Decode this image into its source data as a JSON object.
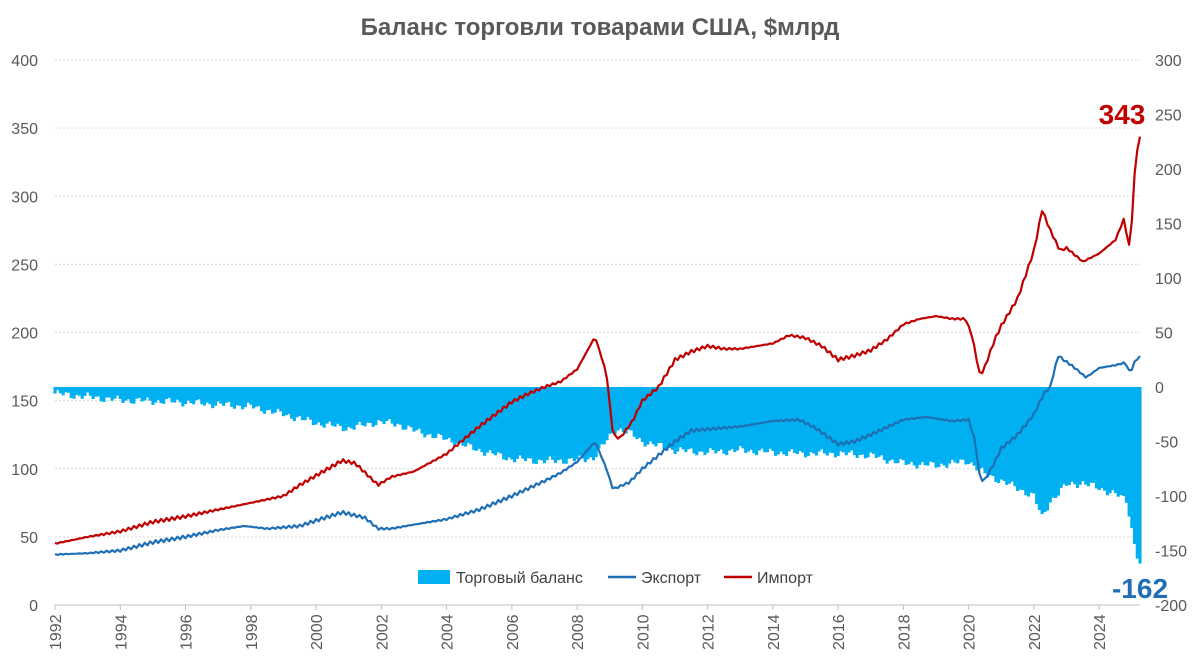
{
  "chart_data": {
    "type": "bar+line",
    "title": "Баланс торговли товарами США, $млрд",
    "left_axis": {
      "min": 0,
      "max": 400,
      "ticks": [
        "0",
        "50",
        "100",
        "150",
        "200",
        "250",
        "300",
        "350",
        "400"
      ]
    },
    "right_axis": {
      "min": -200,
      "max": 300,
      "ticks": [
        "-200",
        "-150",
        "-100",
        "-50",
        "0",
        "50",
        "100",
        "150",
        "200",
        "250",
        "300"
      ]
    },
    "x_range": [
      1992,
      2025.25
    ],
    "x_ticks": [
      "1992",
      "1994",
      "1996",
      "1998",
      "2000",
      "2002",
      "2004",
      "2006",
      "2008",
      "2010",
      "2012",
      "2014",
      "2016",
      "2018",
      "2020",
      "2022",
      "2024"
    ],
    "legend": [
      "Торговый баланс",
      "Экспорт",
      "Импорт"
    ],
    "colors": {
      "balance": "#00b0f0",
      "export": "#1f6fb4",
      "import": "#c00000",
      "grid": "#d9d9d9",
      "axis_text": "#595959"
    },
    "annotations": {
      "import_last": {
        "text": "343",
        "color": "#c00000"
      },
      "balance_last": {
        "text": "-162",
        "color": "#1f6fb4"
      }
    },
    "series": [
      {
        "name": "Экспорт",
        "axis": "left",
        "points": [
          [
            1992.0,
            37
          ],
          [
            1993.0,
            38
          ],
          [
            1994.0,
            40
          ],
          [
            1995.0,
            46
          ],
          [
            1996.0,
            50
          ],
          [
            1997.0,
            55
          ],
          [
            1997.8,
            58
          ],
          [
            1998.5,
            56
          ],
          [
            1999.5,
            58
          ],
          [
            2000.0,
            62
          ],
          [
            2000.8,
            68
          ],
          [
            2001.5,
            64
          ],
          [
            2001.9,
            56
          ],
          [
            2002.3,
            56
          ],
          [
            2003.0,
            59
          ],
          [
            2004.0,
            63
          ],
          [
            2005.0,
            70
          ],
          [
            2006.0,
            80
          ],
          [
            2007.0,
            91
          ],
          [
            2007.5,
            97
          ],
          [
            2008.0,
            105
          ],
          [
            2008.55,
            120
          ],
          [
            2008.9,
            100
          ],
          [
            2009.1,
            85
          ],
          [
            2009.6,
            90
          ],
          [
            2010.0,
            100
          ],
          [
            2010.5,
            110
          ],
          [
            2011.0,
            120
          ],
          [
            2011.5,
            128
          ],
          [
            2012.0,
            129
          ],
          [
            2013.0,
            131
          ],
          [
            2014.0,
            135
          ],
          [
            2014.8,
            136
          ],
          [
            2015.3,
            130
          ],
          [
            2016.0,
            118
          ],
          [
            2016.5,
            120
          ],
          [
            2017.0,
            125
          ],
          [
            2018.0,
            136
          ],
          [
            2018.7,
            138
          ],
          [
            2019.5,
            135
          ],
          [
            2020.0,
            136
          ],
          [
            2020.2,
            120
          ],
          [
            2020.35,
            92
          ],
          [
            2020.5,
            92
          ],
          [
            2020.8,
            105
          ],
          [
            2021.0,
            115
          ],
          [
            2021.5,
            125
          ],
          [
            2022.0,
            140
          ],
          [
            2022.3,
            155
          ],
          [
            2022.5,
            160
          ],
          [
            2022.6,
            170
          ],
          [
            2022.75,
            183
          ],
          [
            2022.9,
            180
          ],
          [
            2023.2,
            175
          ],
          [
            2023.6,
            167
          ],
          [
            2024.0,
            174
          ],
          [
            2024.5,
            176
          ],
          [
            2024.8,
            178
          ],
          [
            2024.95,
            170
          ],
          [
            2025.08,
            178
          ],
          [
            2025.2,
            182
          ]
        ]
      },
      {
        "name": "Импорт",
        "axis": "left",
        "points": [
          [
            1992.0,
            45
          ],
          [
            1993.0,
            50
          ],
          [
            1994.0,
            54
          ],
          [
            1995.0,
            61
          ],
          [
            1996.0,
            65
          ],
          [
            1997.0,
            70
          ],
          [
            1998.0,
            75
          ],
          [
            1999.0,
            80
          ],
          [
            1999.5,
            88
          ],
          [
            2000.0,
            95
          ],
          [
            2000.8,
            106
          ],
          [
            2001.2,
            104
          ],
          [
            2001.9,
            88
          ],
          [
            2002.3,
            94
          ],
          [
            2003.0,
            98
          ],
          [
            2004.0,
            111
          ],
          [
            2005.0,
            131
          ],
          [
            2006.0,
            149
          ],
          [
            2006.5,
            155
          ],
          [
            2007.0,
            160
          ],
          [
            2007.5,
            164
          ],
          [
            2008.0,
            173
          ],
          [
            2008.55,
            197
          ],
          [
            2008.9,
            170
          ],
          [
            2009.1,
            125
          ],
          [
            2009.3,
            122
          ],
          [
            2009.7,
            135
          ],
          [
            2010.0,
            150
          ],
          [
            2010.5,
            160
          ],
          [
            2011.0,
            180
          ],
          [
            2011.5,
            186
          ],
          [
            2012.0,
            190
          ],
          [
            2012.5,
            188
          ],
          [
            2013.0,
            188
          ],
          [
            2014.0,
            192
          ],
          [
            2014.5,
            198
          ],
          [
            2015.0,
            196
          ],
          [
            2015.5,
            190
          ],
          [
            2016.0,
            180
          ],
          [
            2016.5,
            183
          ],
          [
            2017.0,
            187
          ],
          [
            2017.5,
            195
          ],
          [
            2018.0,
            206
          ],
          [
            2018.5,
            210
          ],
          [
            2019.0,
            212
          ],
          [
            2019.5,
            210
          ],
          [
            2019.9,
            210
          ],
          [
            2020.1,
            198
          ],
          [
            2020.35,
            168
          ],
          [
            2020.5,
            175
          ],
          [
            2020.8,
            195
          ],
          [
            2021.0,
            205
          ],
          [
            2021.5,
            225
          ],
          [
            2022.0,
            260
          ],
          [
            2022.25,
            290
          ],
          [
            2022.5,
            275
          ],
          [
            2022.8,
            260
          ],
          [
            2023.0,
            262
          ],
          [
            2023.5,
            252
          ],
          [
            2024.0,
            258
          ],
          [
            2024.5,
            268
          ],
          [
            2024.75,
            283
          ],
          [
            2024.95,
            260
          ],
          [
            2025.03,
            295
          ],
          [
            2025.12,
            330
          ],
          [
            2025.25,
            343
          ]
        ]
      },
      {
        "name": "Торговый баланс",
        "axis": "right",
        "type": "bar",
        "points": [
          [
            1992.0,
            -6
          ],
          [
            1994.0,
            -12
          ],
          [
            1996.0,
            -14
          ],
          [
            1997.0,
            -16
          ],
          [
            1998.0,
            -18
          ],
          [
            1999.0,
            -25
          ],
          [
            2000.0,
            -33
          ],
          [
            2001.0,
            -38
          ],
          [
            2001.9,
            -32
          ],
          [
            2002.5,
            -34
          ],
          [
            2003.0,
            -40
          ],
          [
            2004.0,
            -48
          ],
          [
            2005.0,
            -58
          ],
          [
            2006.0,
            -66
          ],
          [
            2007.0,
            -68
          ],
          [
            2008.0,
            -67
          ],
          [
            2008.5,
            -65
          ],
          [
            2009.2,
            -38
          ],
          [
            2009.6,
            -42
          ],
          [
            2010.0,
            -50
          ],
          [
            2011.0,
            -58
          ],
          [
            2012.0,
            -60
          ],
          [
            2013.0,
            -58
          ],
          [
            2014.0,
            -60
          ],
          [
            2015.0,
            -61
          ],
          [
            2016.0,
            -61
          ],
          [
            2017.0,
            -63
          ],
          [
            2018.0,
            -70
          ],
          [
            2019.0,
            -72
          ],
          [
            2020.0,
            -68
          ],
          [
            2020.5,
            -80
          ],
          [
            2021.0,
            -86
          ],
          [
            2022.0,
            -100
          ],
          [
            2022.25,
            -120
          ],
          [
            2022.5,
            -105
          ],
          [
            2023.0,
            -90
          ],
          [
            2023.5,
            -88
          ],
          [
            2024.0,
            -93
          ],
          [
            2024.5,
            -98
          ],
          [
            2024.85,
            -105
          ],
          [
            2025.0,
            -130
          ],
          [
            2025.12,
            -150
          ],
          [
            2025.25,
            -162
          ]
        ]
      }
    ]
  }
}
